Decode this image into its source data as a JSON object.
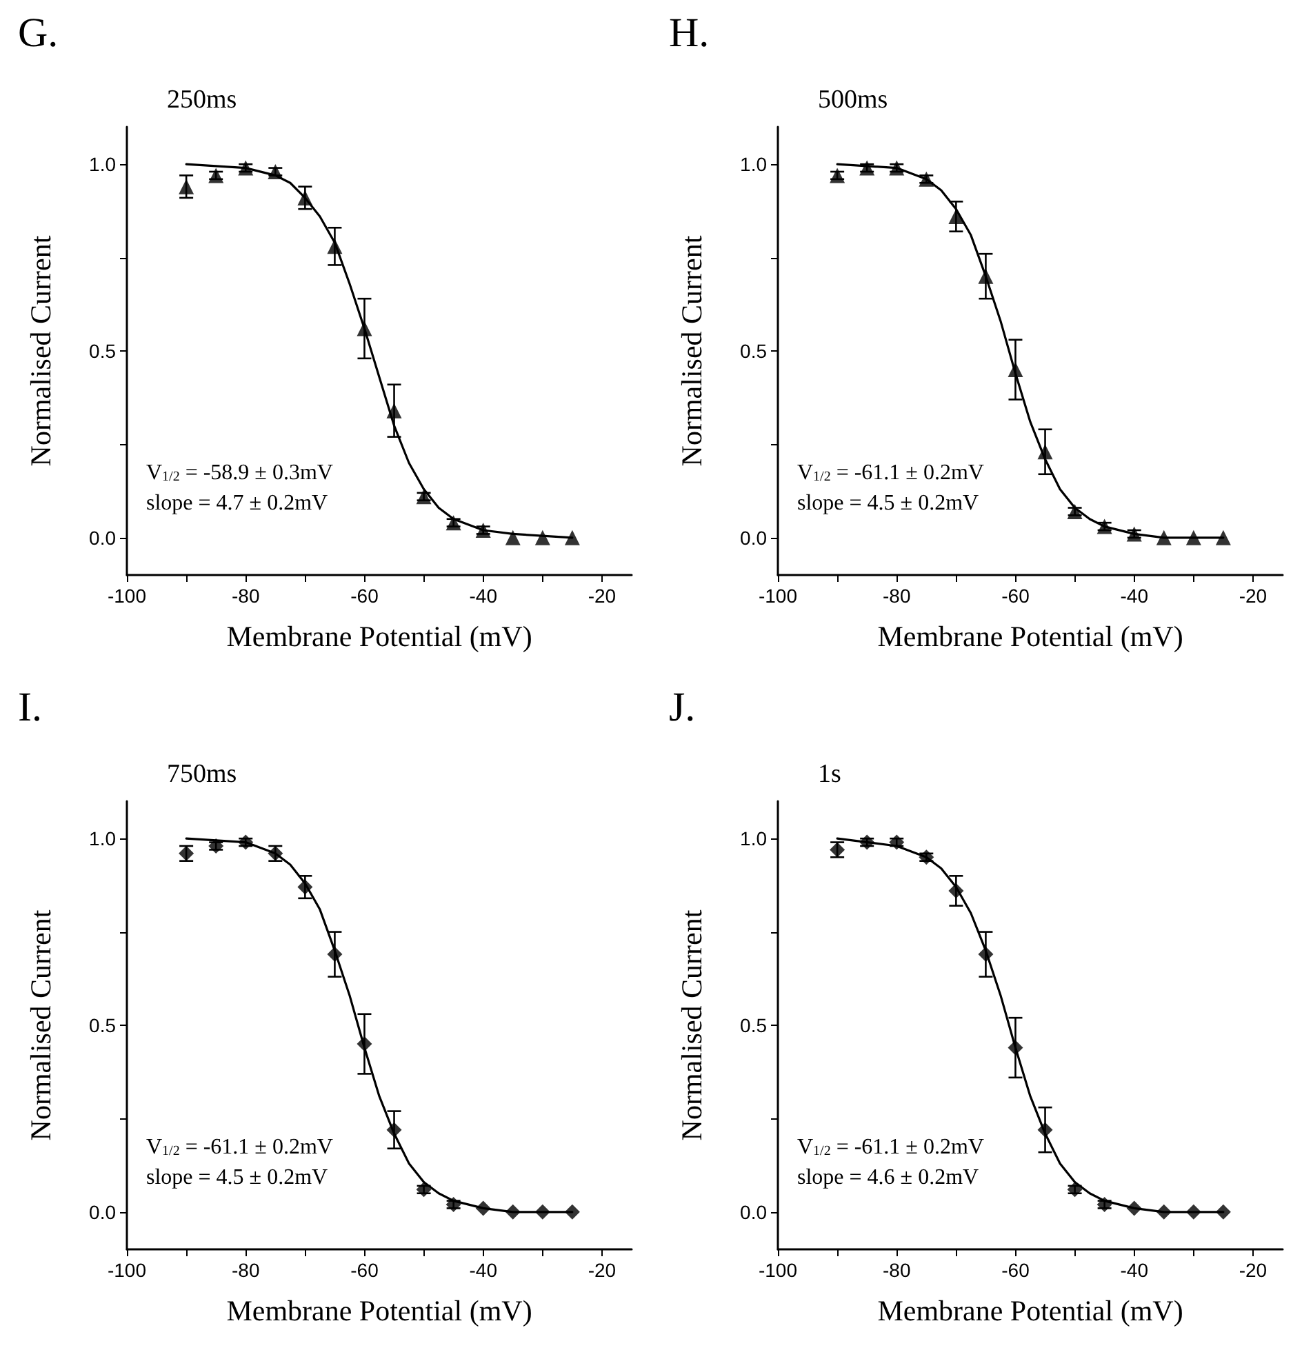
{
  "chart_data": [
    {
      "type": "scatter",
      "title": "G.",
      "subtitle": "250ms",
      "xlabel": "Membrane Potential (mV)",
      "ylabel": "Normalised Current",
      "annotations": [
        "V$_{1/2}$ = -58.9 ± 0.3mV",
        "slope = 4.7 ± 0.2mV"
      ],
      "x": [
        -90,
        -85,
        -80,
        -75,
        -70,
        -65,
        -60,
        -55,
        -50,
        -45,
        -40,
        -35,
        -30,
        -25
      ],
      "xlim": [
        -100,
        -15
      ],
      "xticks": [
        -100,
        {
          "value": -90,
          "label": null
        },
        -80,
        {
          "value": -70,
          "label": null
        },
        -60,
        {
          "value": -50,
          "label": null
        },
        -40,
        {
          "value": -30,
          "label": null
        },
        -20
      ],
      "ylim": [
        -0.1,
        1.1
      ],
      "yticks": [
        {
          "value": 0,
          "label": "0.0"
        },
        {
          "value": 0.25,
          "label": null
        },
        {
          "value": 0.5,
          "label": "0.5"
        },
        {
          "value": 0.75,
          "label": null
        },
        {
          "value": 1,
          "label": "1.0"
        }
      ],
      "marker": "triangle",
      "grid": false,
      "series": [
        {
          "color": "#000000",
          "values": [
            0.94,
            0.97,
            0.99,
            0.98,
            0.91,
            0.78,
            0.56,
            0.34,
            0.11,
            0.04,
            0.02,
            0.0,
            0.0,
            0.0
          ],
          "errors": [
            0.03,
            0.01,
            0.01,
            0.01,
            0.03,
            0.05,
            0.08,
            0.07,
            0.01,
            0.01,
            0.01,
            null,
            null,
            null
          ]
        },
        {
          "type": "line",
          "marker": "none",
          "color": "#000000",
          "x": [
            -90,
            -80,
            -75,
            -72.5,
            -70,
            -67.5,
            -65,
            -62.5,
            -60,
            -57.5,
            -55,
            -52.5,
            -50,
            -47.5,
            -45,
            -40,
            -35,
            -25
          ],
          "values": [
            1.0,
            0.99,
            0.97,
            0.95,
            0.91,
            0.86,
            0.79,
            0.68,
            0.56,
            0.43,
            0.3,
            0.2,
            0.13,
            0.08,
            0.05,
            0.02,
            0.01,
            0.0
          ]
        }
      ]
    },
    {
      "type": "scatter",
      "title": "H.",
      "subtitle": "500ms",
      "xlabel": "Membrane Potential (mV)",
      "ylabel": "Normalised Current",
      "annotations": [
        "V$_{1/2}$ = -61.1 ± 0.2mV",
        "slope = 4.5 ± 0.2mV"
      ],
      "x": [
        -90,
        -85,
        -80,
        -75,
        -70,
        -65,
        -60,
        -55,
        -50,
        -45,
        -40,
        -35,
        -30,
        -25
      ],
      "xlim": [
        -100,
        -15
      ],
      "xticks": [
        -100,
        {
          "value": -90,
          "label": null
        },
        -80,
        {
          "value": -70,
          "label": null
        },
        -60,
        {
          "value": -50,
          "label": null
        },
        -40,
        {
          "value": -30,
          "label": null
        },
        -20
      ],
      "ylim": [
        -0.1,
        1.1
      ],
      "yticks": [
        {
          "value": 0,
          "label": "0.0"
        },
        {
          "value": 0.25,
          "label": null
        },
        {
          "value": 0.5,
          "label": "0.5"
        },
        {
          "value": 0.75,
          "label": null
        },
        {
          "value": 1,
          "label": "1.0"
        }
      ],
      "marker": "triangle",
      "grid": false,
      "series": [
        {
          "color": "#000000",
          "values": [
            0.97,
            0.99,
            0.99,
            0.96,
            0.86,
            0.7,
            0.45,
            0.23,
            0.07,
            0.03,
            0.01,
            0.0,
            0.0,
            0.0
          ],
          "errors": [
            0.01,
            0.01,
            0.01,
            0.01,
            0.04,
            0.06,
            0.08,
            0.06,
            0.01,
            0.01,
            0.01,
            null,
            null,
            null
          ]
        },
        {
          "type": "line",
          "marker": "none",
          "color": "#000000",
          "x": [
            -90,
            -80,
            -75,
            -72.5,
            -70,
            -67.5,
            -65,
            -62.5,
            -60,
            -57.5,
            -55,
            -52.5,
            -50,
            -47.5,
            -45,
            -40,
            -35,
            -25
          ],
          "values": [
            1.0,
            0.99,
            0.96,
            0.93,
            0.88,
            0.81,
            0.7,
            0.58,
            0.44,
            0.31,
            0.21,
            0.13,
            0.08,
            0.05,
            0.03,
            0.01,
            0.0,
            0.0
          ]
        }
      ]
    },
    {
      "type": "scatter",
      "title": "I.",
      "subtitle": "750ms",
      "xlabel": "Membrane Potential (mV)",
      "ylabel": "Normalised Current",
      "annotations": [
        "V$_{1/2}$ = -61.1 ± 0.2mV",
        "slope = 4.5 ± 0.2mV"
      ],
      "x": [
        -90,
        -85,
        -80,
        -75,
        -70,
        -65,
        -60,
        -55,
        -50,
        -45,
        -40,
        -35,
        -30,
        -25
      ],
      "xlim": [
        -100,
        -15
      ],
      "xticks": [
        -100,
        {
          "value": -90,
          "label": null
        },
        -80,
        {
          "value": -70,
          "label": null
        },
        -60,
        {
          "value": -50,
          "label": null
        },
        -40,
        {
          "value": -30,
          "label": null
        },
        -20
      ],
      "ylim": [
        -0.1,
        1.1
      ],
      "yticks": [
        {
          "value": 0,
          "label": "0.0"
        },
        {
          "value": 0.25,
          "label": null
        },
        {
          "value": 0.5,
          "label": "0.5"
        },
        {
          "value": 0.75,
          "label": null
        },
        {
          "value": 1,
          "label": "1.0"
        }
      ],
      "marker": "diamond",
      "grid": false,
      "series": [
        {
          "color": "#000000",
          "values": [
            0.96,
            0.98,
            0.99,
            0.96,
            0.87,
            0.69,
            0.45,
            0.22,
            0.06,
            0.02,
            0.01,
            0.0,
            0.0,
            0.0
          ],
          "errors": [
            0.02,
            0.01,
            0.01,
            0.02,
            0.03,
            0.06,
            0.08,
            0.05,
            0.01,
            0.01,
            null,
            null,
            null,
            null
          ]
        },
        {
          "type": "line",
          "marker": "none",
          "color": "#000000",
          "x": [
            -90,
            -80,
            -75,
            -72.5,
            -70,
            -67.5,
            -65,
            -62.5,
            -60,
            -57.5,
            -55,
            -52.5,
            -50,
            -47.5,
            -45,
            -40,
            -35,
            -25
          ],
          "values": [
            1.0,
            0.99,
            0.96,
            0.93,
            0.88,
            0.81,
            0.7,
            0.58,
            0.44,
            0.31,
            0.21,
            0.13,
            0.08,
            0.05,
            0.03,
            0.01,
            0.0,
            0.0
          ]
        }
      ]
    },
    {
      "type": "scatter",
      "title": "J.",
      "subtitle": "1s",
      "xlabel": "Membrane Potential (mV)",
      "ylabel": "Normalised Current",
      "annotations": [
        "V$_{1/2}$ = -61.1 ± 0.2mV",
        "slope = 4.6 ± 0.2mV"
      ],
      "x": [
        -90,
        -85,
        -80,
        -75,
        -70,
        -65,
        -60,
        -55,
        -50,
        -45,
        -40,
        -35,
        -30,
        -25
      ],
      "xlim": [
        -100,
        -15
      ],
      "xticks": [
        -100,
        {
          "value": -90,
          "label": null
        },
        -80,
        {
          "value": -70,
          "label": null
        },
        -60,
        {
          "value": -50,
          "label": null
        },
        -40,
        {
          "value": -30,
          "label": null
        },
        -20
      ],
      "ylim": [
        -0.1,
        1.1
      ],
      "yticks": [
        {
          "value": 0,
          "label": "0.0"
        },
        {
          "value": 0.25,
          "label": null
        },
        {
          "value": 0.5,
          "label": "0.5"
        },
        {
          "value": 0.75,
          "label": null
        },
        {
          "value": 1,
          "label": "1.0"
        }
      ],
      "marker": "diamond",
      "grid": false,
      "series": [
        {
          "color": "#000000",
          "values": [
            0.97,
            0.99,
            0.99,
            0.95,
            0.86,
            0.69,
            0.44,
            0.22,
            0.06,
            0.02,
            0.01,
            0.0,
            0.0,
            0.0
          ],
          "errors": [
            0.02,
            0.01,
            0.01,
            0.01,
            0.04,
            0.06,
            0.08,
            0.06,
            0.01,
            0.01,
            null,
            null,
            null,
            null
          ]
        },
        {
          "type": "line",
          "marker": "none",
          "color": "#000000",
          "x": [
            -90,
            -80,
            -75,
            -72.5,
            -70,
            -67.5,
            -65,
            -62.5,
            -60,
            -57.5,
            -55,
            -52.5,
            -50,
            -47.5,
            -45,
            -40,
            -35,
            -25
          ],
          "values": [
            1.0,
            0.98,
            0.95,
            0.92,
            0.87,
            0.8,
            0.7,
            0.58,
            0.44,
            0.31,
            0.21,
            0.13,
            0.08,
            0.05,
            0.03,
            0.01,
            0.0,
            0.0
          ]
        }
      ]
    }
  ]
}
